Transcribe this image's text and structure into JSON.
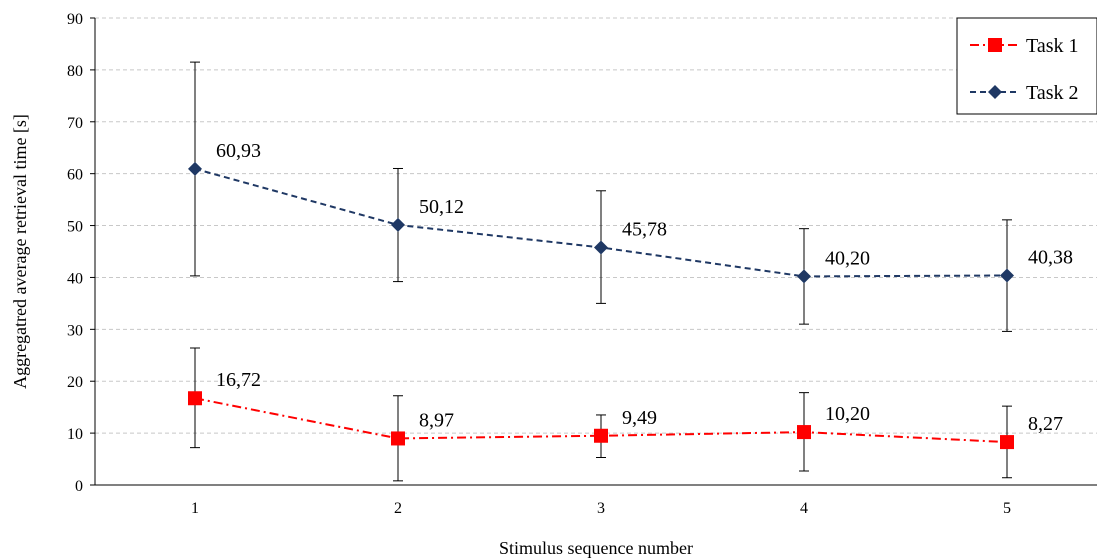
{
  "chart_data": {
    "type": "line",
    "title": "",
    "xlabel": "Stimulus sequence number",
    "ylabel": "Aggregatred average retrieval time [s]",
    "categories": [
      "1",
      "2",
      "3",
      "4",
      "5"
    ],
    "ylim": [
      0,
      90
    ],
    "yticks": [
      0,
      10,
      20,
      30,
      40,
      50,
      60,
      70,
      80,
      90
    ],
    "grid": "horizontal dashed",
    "legend_position": "top-right",
    "series": [
      {
        "name": "Task 1",
        "color": "#ff0000",
        "marker": "square",
        "line_style": "dash-dot",
        "values": [
          16.72,
          8.97,
          9.49,
          10.2,
          8.27
        ],
        "labels": [
          "16,72",
          "8,97",
          "9,49",
          "10,20",
          "8,27"
        ],
        "error_low": [
          7.2,
          0.8,
          5.3,
          2.7,
          1.4
        ],
        "error_high": [
          26.4,
          17.2,
          13.5,
          17.8,
          15.2
        ]
      },
      {
        "name": "Task 2",
        "color": "#1f3864",
        "marker": "diamond",
        "line_style": "dashed",
        "values": [
          60.93,
          50.12,
          45.78,
          40.2,
          40.38
        ],
        "labels": [
          "60,93",
          "50,12",
          "45,78",
          "40,20",
          "40,38"
        ],
        "error_low": [
          40.3,
          39.2,
          35.0,
          31.0,
          29.6
        ],
        "error_high": [
          81.5,
          61.0,
          56.7,
          49.4,
          51.1
        ]
      }
    ]
  }
}
